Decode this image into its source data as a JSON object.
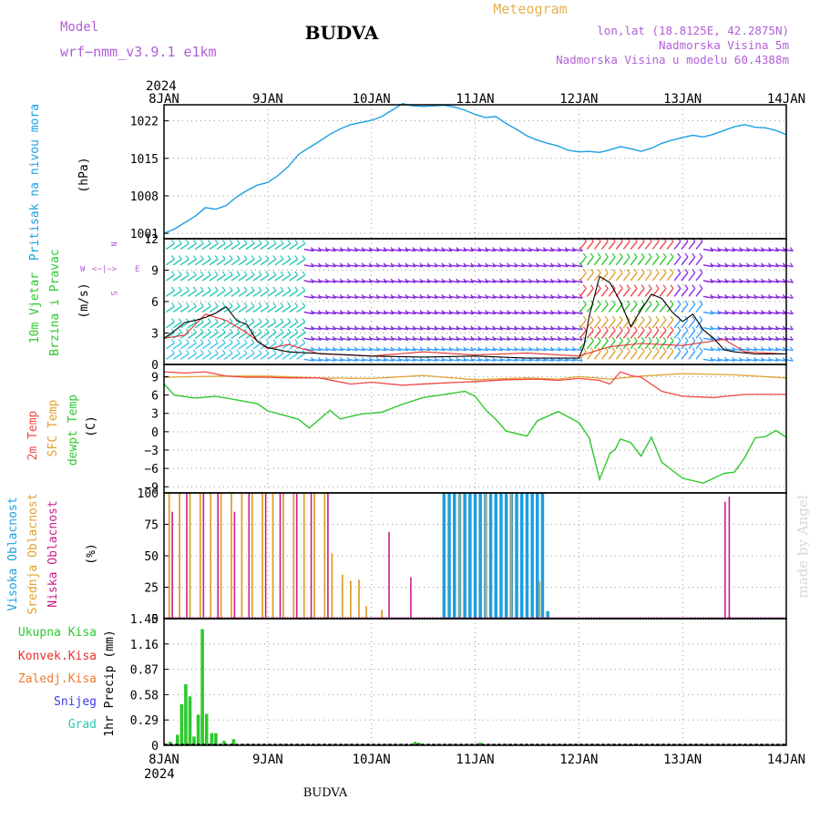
{
  "header": {
    "model_label": "Model",
    "model_name": "wrf−nmm_v3.9.1  e1km",
    "station": "BUDVA",
    "meteogram": "Meteogram",
    "lonlat": "lon,lat (18.8125E, 42.2875N)",
    "altitude": "Nadmorska Visina 5m",
    "model_altitude": "Nadmorska Visina u modelu 60.4388m",
    "footer_station": "BUDVA",
    "watermark": "made by Angel",
    "year": "2024"
  },
  "colors": {
    "pressure": "#1e9fe0",
    "wind_speed": "#000000",
    "gust": "#e83030",
    "temp2m": "#f04848",
    "sfc_temp": "#e0a030",
    "dewpt": "#2ec82e",
    "cloud_high": "#1e9fe0",
    "cloud_mid": "#e0a030",
    "cloud_low": "#c81e8c",
    "precip_total": "#2ec82e",
    "precip_conv": "#e83030",
    "precip_frozen": "#f07830",
    "precip_snow": "#3c3ce6",
    "precip_graupel": "#28c8b4"
  },
  "chart_data": [
    {
      "type": "line",
      "panel": "pressure",
      "y_label_line1": "Pritisak na nivou mora",
      "y_unit": "(hPa)",
      "x_ticks": [
        "8JAN",
        "9JAN",
        "10JAN",
        "11JAN",
        "12JAN",
        "13JAN",
        "14JAN"
      ],
      "x_range_days": [
        0,
        6
      ],
      "y_ticks": [
        "1022",
        "1015",
        "1008",
        "1001"
      ],
      "ylim": [
        1000,
        1025
      ],
      "grid": true,
      "series": [
        {
          "x": [
            0,
            0.1,
            0.2,
            0.3,
            0.4,
            0.5,
            0.6,
            0.7,
            0.8,
            0.9,
            1.0,
            1.1,
            1.2,
            1.3,
            1.4,
            1.5,
            1.6,
            1.7,
            1.8,
            1.9,
            2.0,
            2.1,
            2.2,
            2.3,
            2.4,
            2.5,
            2.6,
            2.7,
            2.8,
            2.9,
            3.0,
            3.1,
            3.2,
            3.3,
            3.4,
            3.5,
            3.6,
            3.7,
            3.8,
            3.9,
            4.0,
            4.1,
            4.2,
            4.3,
            4.4,
            4.5,
            4.6,
            4.7,
            4.8,
            4.9,
            5.0,
            5.1,
            5.2,
            5.3,
            5.4,
            5.5,
            5.6,
            5.7,
            5.8,
            5.9,
            6.0
          ],
          "values": [
            1001,
            1001.8,
            1003,
            1004.2,
            1005.8,
            1005.5,
            1006.2,
            1007.8,
            1009,
            1010,
            1010.5,
            1011.8,
            1013.5,
            1015.8,
            1017,
            1018.2,
            1019.5,
            1020.5,
            1021.3,
            1021.7,
            1022.1,
            1022.8,
            1024,
            1025.2,
            1024.8,
            1024.7,
            1024.8,
            1024.9,
            1024.6,
            1024.0,
            1023.2,
            1022.6,
            1022.8,
            1021.5,
            1020.4,
            1019.2,
            1018.4,
            1017.8,
            1017.3,
            1016.5,
            1016.2,
            1016.3,
            1016.1,
            1016.6,
            1017.2,
            1016.8,
            1016.3,
            1016.9,
            1017.8,
            1018.4,
            1018.9,
            1019.3,
            1019.0,
            1019.5,
            1020.2,
            1020.9,
            1021.3,
            1020.8,
            1020.7,
            1020.2,
            1019.4
          ]
        }
      ]
    },
    {
      "type": "line",
      "panel": "wind",
      "y_label_line1": "10m Vjetar",
      "y_label_line2": "Brzina i Pravac",
      "y_unit": "(m/s)",
      "direction_key": [
        "W",
        "<−|−>",
        "E",
        "N",
        "S"
      ],
      "y_ticks": [
        "12",
        "9",
        "6",
        "3",
        "0"
      ],
      "ylim": [
        0,
        12
      ],
      "grid": true,
      "series": [
        {
          "name": "speed",
          "x": [
            0,
            0.1,
            0.2,
            0.3,
            0.4,
            0.5,
            0.6,
            0.7,
            0.8,
            0.9,
            1.0,
            1.2,
            1.4,
            1.6,
            1.8,
            2.0,
            2.5,
            3.0,
            3.5,
            4.0,
            4.05,
            4.1,
            4.2,
            4.3,
            4.4,
            4.5,
            4.6,
            4.7,
            4.8,
            4.9,
            5.0,
            5.1,
            5.2,
            5.3,
            5.4,
            5.5,
            5.7,
            6.0
          ],
          "values": [
            2.5,
            3.2,
            4.0,
            4.2,
            4.5,
            4.9,
            5.5,
            4.2,
            3.8,
            2.2,
            1.6,
            1.2,
            1.1,
            1.0,
            0.9,
            0.8,
            0.7,
            0.8,
            0.6,
            0.6,
            1.8,
            4.6,
            8.4,
            7.8,
            6.0,
            3.6,
            5.2,
            6.7,
            6.3,
            5.0,
            4.1,
            4.8,
            3.3,
            2.5,
            1.4,
            1.2,
            1.0,
            1.0
          ]
        },
        {
          "name": "gust",
          "x": [
            0,
            0.2,
            0.4,
            0.6,
            0.8,
            1.0,
            1.2,
            1.5,
            2.0,
            2.5,
            3.0,
            3.5,
            4.0,
            4.3,
            4.6,
            5.0,
            5.4,
            5.6,
            6.0
          ],
          "values": [
            2.5,
            2.8,
            4.8,
            4.2,
            3.0,
            1.5,
            1.9,
            1.0,
            0.8,
            1.2,
            0.9,
            1.1,
            0.8,
            1.7,
            2.0,
            1.8,
            2.4,
            1.2,
            1.0
          ]
        }
      ]
    },
    {
      "type": "line",
      "panel": "temperature",
      "series_labels": [
        "2m Temp",
        "SFC Temp",
        "dewpt Temp"
      ],
      "y_unit": "(C)",
      "y_ticks": [
        "9",
        "6",
        "3",
        "0",
        "−3",
        "−6",
        "−9"
      ],
      "ylim": [
        -10,
        11
      ],
      "grid": true,
      "series": [
        {
          "name": "2m Temp",
          "x": [
            0,
            0.2,
            0.4,
            0.6,
            0.8,
            1.0,
            1.2,
            1.5,
            1.8,
            2.0,
            2.3,
            2.6,
            3.0,
            3.3,
            3.6,
            3.8,
            4.0,
            4.2,
            4.3,
            4.4,
            4.5,
            4.6,
            4.8,
            5.0,
            5.3,
            5.6,
            6.0
          ],
          "values": [
            9.8,
            9.6,
            9.8,
            9.1,
            8.9,
            8.9,
            8.8,
            8.8,
            7.8,
            8.1,
            7.6,
            7.9,
            8.2,
            8.5,
            8.6,
            8.4,
            8.7,
            8.4,
            7.8,
            9.8,
            9.2,
            8.9,
            6.6,
            5.8,
            5.6,
            6.1,
            6.1
          ]
        },
        {
          "name": "SFC Temp",
          "x": [
            0,
            0.3,
            0.6,
            1.0,
            1.5,
            2.0,
            2.5,
            3.0,
            3.5,
            3.8,
            4.0,
            4.3,
            4.6,
            5.0,
            5.5,
            6.0
          ],
          "values": [
            8.9,
            9.0,
            9.1,
            9.1,
            8.8,
            8.7,
            9.2,
            8.5,
            8.8,
            8.6,
            9.0,
            8.6,
            9.1,
            9.5,
            9.3,
            8.8
          ]
        },
        {
          "name": "dewpt Temp",
          "x": [
            0,
            0.1,
            0.3,
            0.5,
            0.7,
            0.9,
            1.0,
            1.2,
            1.3,
            1.4,
            1.6,
            1.7,
            1.9,
            2.1,
            2.3,
            2.5,
            2.7,
            2.9,
            3.0,
            3.1,
            3.2,
            3.3,
            3.5,
            3.6,
            3.8,
            4.0,
            4.1,
            4.2,
            4.3,
            4.35,
            4.4,
            4.5,
            4.6,
            4.7,
            4.8,
            5.0,
            5.2,
            5.4,
            5.5,
            5.6,
            5.7,
            5.8,
            5.9,
            6.0
          ],
          "values": [
            7.8,
            6.0,
            5.5,
            5.8,
            5.2,
            4.6,
            3.4,
            2.5,
            2.0,
            0.6,
            3.5,
            2.1,
            2.9,
            3.2,
            4.5,
            5.6,
            6.1,
            6.6,
            5.8,
            3.6,
            2.0,
            0.1,
            -0.7,
            1.8,
            3.3,
            1.5,
            -1.0,
            -7.8,
            -3.5,
            -2.9,
            -1.2,
            -1.8,
            -4.0,
            -0.9,
            -5.0,
            -7.6,
            -8.4,
            -6.8,
            -6.6,
            -4.2,
            -1.0,
            -0.8,
            0.2,
            -0.9
          ]
        }
      ]
    },
    {
      "type": "bar",
      "panel": "clouds",
      "series_labels": [
        "Visoka Oblacnost",
        "Srednja Oblacnost",
        "Niska Oblacnost"
      ],
      "y_unit": "(%)",
      "y_ticks": [
        "100",
        "75",
        "50",
        "25",
        "0"
      ],
      "ylim": [
        0,
        100
      ],
      "grid": true,
      "series": [
        {
          "name": "Visoka Oblacnost",
          "x": [
            2.7,
            2.75,
            2.8,
            2.85,
            2.9,
            2.95,
            3.0,
            3.05,
            3.1,
            3.15,
            3.2,
            3.25,
            3.3,
            3.35,
            3.4,
            3.45,
            3.5,
            3.55,
            3.6,
            3.65,
            3.7
          ],
          "values": [
            100,
            100,
            100,
            100,
            100,
            100,
            100,
            100,
            100,
            100,
            100,
            100,
            100,
            100,
            100,
            100,
            100,
            100,
            100,
            100,
            6
          ]
        },
        {
          "name": "Srednja Oblacnost",
          "x": [
            0.05,
            0.15,
            0.25,
            0.35,
            0.45,
            0.55,
            0.65,
            0.75,
            0.85,
            0.95,
            1.05,
            1.15,
            1.25,
            1.35,
            1.45,
            1.55,
            1.62,
            1.72,
            1.8,
            1.88,
            1.95,
            2.1,
            2.85,
            3.1,
            3.35,
            3.62
          ],
          "values": [
            100,
            100,
            100,
            100,
            100,
            100,
            100,
            100,
            100,
            100,
            100,
            100,
            100,
            100,
            100,
            100,
            52,
            35,
            30,
            31,
            10,
            7,
            100,
            100,
            100,
            30
          ]
        },
        {
          "name": "Niska Oblacnost",
          "x": [
            0.08,
            0.22,
            0.38,
            0.52,
            0.68,
            0.82,
            0.98,
            1.12,
            1.28,
            1.42,
            1.58,
            2.17,
            2.38,
            5.41,
            5.45
          ],
          "values": [
            85,
            100,
            100,
            100,
            85,
            100,
            100,
            100,
            100,
            100,
            100,
            69,
            33,
            93,
            97
          ]
        }
      ]
    },
    {
      "type": "bar",
      "panel": "precip",
      "series_labels": [
        "Ukupna Kisa",
        "Konvek.Kisa",
        "Zaledj.Kisa",
        "Snijeg",
        "Grad"
      ],
      "y_unit": "1hr Precip (mm)",
      "y_ticks": [
        "1.45",
        "1.16",
        "0.87",
        "0.58",
        "0.29",
        "0"
      ],
      "ylim": [
        0,
        1.45
      ],
      "grid": true,
      "series": [
        {
          "name": "Ukupna Kisa",
          "x": [
            0.06,
            0.13,
            0.17,
            0.21,
            0.25,
            0.29,
            0.33,
            0.37,
            0.41,
            0.46,
            0.5,
            0.58,
            0.67,
            2.42,
            2.46,
            3.05
          ],
          "values": [
            0.04,
            0.12,
            0.47,
            0.7,
            0.56,
            0.1,
            0.35,
            1.33,
            0.36,
            0.14,
            0.14,
            0.05,
            0.07,
            0.04,
            0.03,
            0.03
          ]
        }
      ]
    }
  ]
}
